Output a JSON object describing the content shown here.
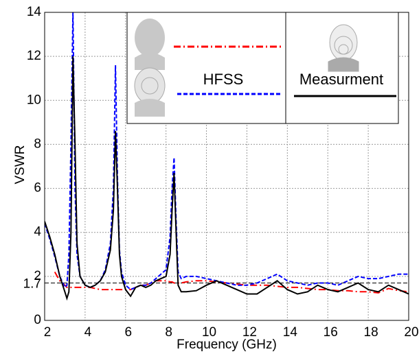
{
  "chart_data": {
    "type": "line",
    "xlabel": "Frequency (GHz)",
    "ylabel": "VSWR",
    "x": [
      2,
      2.25,
      2.5,
      2.75,
      3,
      3.1,
      3.2,
      3.3,
      3.4,
      3.5,
      3.6,
      3.75,
      4,
      4.25,
      4.5,
      4.75,
      5,
      5.25,
      5.4,
      5.5,
      5.6,
      5.7,
      5.8,
      6,
      6.25,
      6.5,
      6.75,
      7,
      7.25,
      7.5,
      7.75,
      8,
      8.2,
      8.3,
      8.4,
      8.5,
      8.6,
      8.75,
      9,
      9.5,
      10,
      10.5,
      11,
      11.5,
      12,
      12.5,
      13,
      13.5,
      14,
      14.5,
      15,
      15.5,
      16,
      16.5,
      17,
      17.5,
      18,
      18.5,
      19,
      19.5,
      20
    ],
    "series": [
      {
        "color": "#ff0000",
        "dash": "10,4,2,4",
        "values": [
          null,
          null,
          2.2,
          1.8,
          1.6,
          1.5,
          1.5,
          1.5,
          1.5,
          1.5,
          1.5,
          1.5,
          1.5,
          1.5,
          1.45,
          1.4,
          1.4,
          1.4,
          1.4,
          1.4,
          1.4,
          1.4,
          1.4,
          1.4,
          1.4,
          1.5,
          1.6,
          1.6,
          1.7,
          1.8,
          1.8,
          1.8,
          1.75,
          1.75,
          1.7,
          1.7,
          1.7,
          1.7,
          1.75,
          1.8,
          1.8,
          1.75,
          1.7,
          1.65,
          1.6,
          1.6,
          1.6,
          1.55,
          1.5,
          1.5,
          1.45,
          1.4,
          1.4,
          1.35,
          1.35,
          1.3,
          1.3,
          1.25,
          1.45,
          1.35,
          1.3
        ]
      },
      {
        "name": "HFSS",
        "color": "#0000ff",
        "dash": "6,3",
        "values": [
          4.4,
          3.7,
          2.9,
          2.0,
          1.5,
          1.6,
          3,
          8,
          14,
          6,
          3,
          2.0,
          1.6,
          1.5,
          1.6,
          1.8,
          2.3,
          3.5,
          6,
          11.6,
          6.5,
          3.2,
          2.2,
          1.6,
          1.4,
          1.5,
          1.6,
          1.6,
          1.7,
          1.9,
          2.1,
          2.3,
          3.8,
          6,
          7.4,
          4.5,
          2.2,
          1.9,
          2.0,
          2.0,
          1.9,
          1.8,
          1.7,
          1.6,
          1.6,
          1.7,
          1.9,
          2.1,
          1.8,
          1.7,
          1.6,
          1.7,
          1.7,
          1.6,
          1.8,
          2.0,
          1.9,
          1.9,
          2.0,
          2.1,
          2.1
        ]
      },
      {
        "name": "Measurment",
        "color": "#000000",
        "values": [
          4.5,
          3.8,
          3.0,
          2.0,
          1.3,
          1.0,
          1.3,
          4,
          12,
          8,
          3.5,
          2.0,
          1.6,
          1.5,
          1.6,
          1.8,
          2.2,
          3.2,
          5,
          8.6,
          6,
          3,
          2.0,
          1.4,
          1.1,
          1.5,
          1.6,
          1.5,
          1.6,
          1.8,
          1.9,
          2.0,
          3,
          5,
          6.7,
          4,
          1.6,
          1.3,
          1.3,
          1.35,
          1.6,
          1.8,
          1.6,
          1.4,
          1.2,
          1.2,
          1.5,
          1.8,
          1.4,
          1.2,
          1.3,
          1.6,
          1.4,
          1.3,
          1.5,
          1.7,
          1.4,
          1.3,
          1.6,
          1.4,
          1.2
        ]
      }
    ],
    "xlim": [
      2,
      20
    ],
    "xticks": [
      2,
      4,
      6,
      8,
      10,
      12,
      14,
      16,
      18,
      20
    ],
    "ylim": [
      0,
      14
    ],
    "yticks": [
      0,
      2,
      4,
      6,
      8,
      10,
      12,
      14
    ],
    "reference_line": 1.7,
    "grid": true
  }
}
